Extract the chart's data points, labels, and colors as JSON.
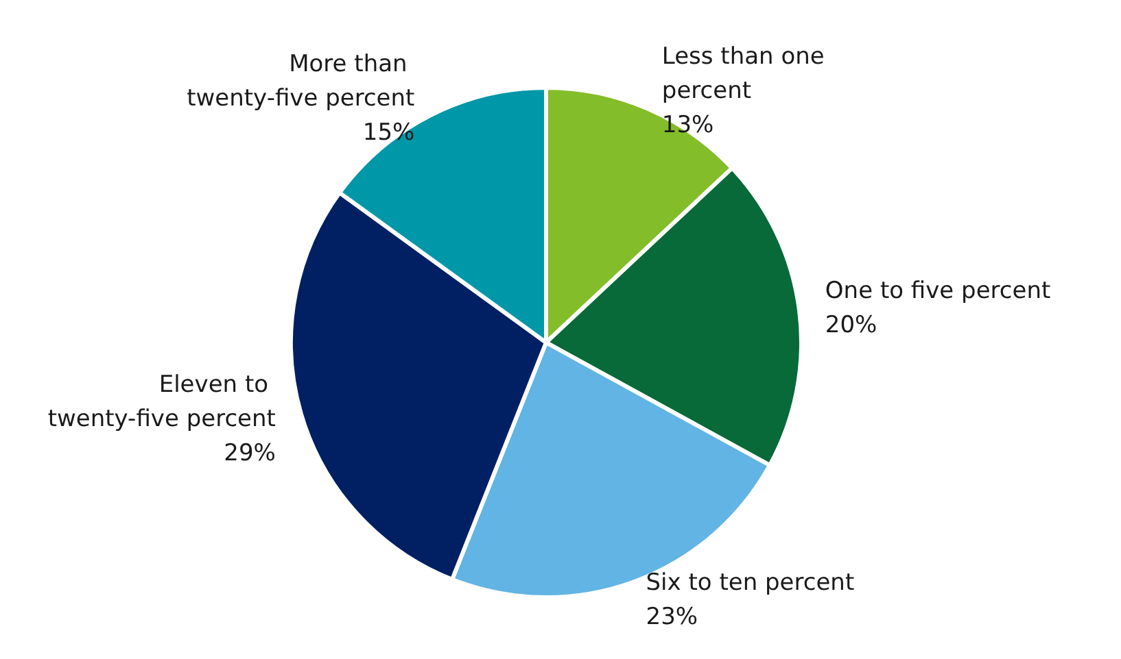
{
  "chart_data": {
    "type": "pie",
    "categories": [
      "Less than one percent",
      "One to five percent",
      "Six to ten percent",
      "Eleven to twenty-five percent",
      "More than twenty-five percent"
    ],
    "values": [
      13,
      20,
      23,
      29,
      15
    ],
    "value_labels": [
      "13%",
      "20%",
      "23%",
      "29%",
      "15%"
    ],
    "colors": [
      "#84bd2a",
      "#076a38",
      "#62b4e4",
      "#002063",
      "#0097a9"
    ]
  }
}
